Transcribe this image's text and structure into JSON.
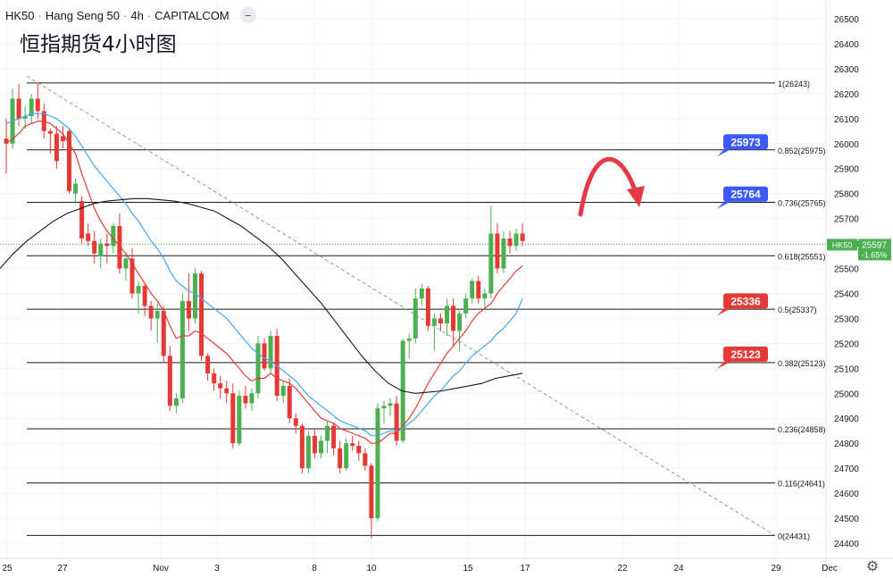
{
  "header": {
    "symbol": "HK50",
    "name": "Hang Seng 50",
    "interval": "4h",
    "source": "CAPITALCOM",
    "collapse_icon": "minus-icon"
  },
  "annotation_title": "恒指期货4小时图",
  "settings_icon": "gear-icon",
  "colors": {
    "up": "#4caf50",
    "down": "#e53935",
    "ema_fast": "#e53935",
    "ema_mid": "#42a5f5",
    "ema_slow": "#131722",
    "grid": "#f0f3fa",
    "fib": "#1a1a1a",
    "label_blue": "#3d5afe",
    "label_red": "#e53935",
    "arrow": "#e53945",
    "trend": "#9598a1"
  },
  "chart_data": {
    "type": "candlestick",
    "y_axis": {
      "min": 24380,
      "max": 26550,
      "ticks": [
        26500,
        26400,
        26300,
        26200,
        26100,
        26000,
        25900,
        25800,
        25700,
        25600,
        25500,
        25400,
        25300,
        25200,
        25100,
        25000,
        24900,
        24800,
        24700,
        24600,
        24500,
        24400
      ]
    },
    "x_axis": {
      "labels": [
        "25",
        "27",
        "Nov",
        "3",
        "8",
        "10",
        "15",
        "17",
        "22",
        "24",
        "29",
        "Dec"
      ]
    },
    "price_label": {
      "symbol": "HK50",
      "price": "25597",
      "change": "-1.65%"
    },
    "fib_levels": [
      {
        "label": "1(26243)",
        "price": 26243
      },
      {
        "label": "0.852(25975)",
        "price": 25975
      },
      {
        "label": "0.736(25765)",
        "price": 25765
      },
      {
        "label": "0.618(25551)",
        "price": 25551
      },
      {
        "label": "0.5(25337)",
        "price": 25337
      },
      {
        "label": "0.382(25123)",
        "price": 25123
      },
      {
        "label": "0.236(24858)",
        "price": 24858
      },
      {
        "label": "0.116(24641)",
        "price": 24641
      },
      {
        "label": "0(24431)",
        "price": 24431
      }
    ],
    "level_tags": [
      {
        "text": "25973",
        "price": 25973,
        "kind": "resistance"
      },
      {
        "text": "25764",
        "price": 25764,
        "kind": "resistance"
      },
      {
        "text": "25336",
        "price": 25336,
        "kind": "support"
      },
      {
        "text": "25123",
        "price": 25123,
        "kind": "support"
      }
    ],
    "candles": [
      [
        26020,
        26100,
        25880,
        26000
      ],
      [
        26000,
        26220,
        25980,
        26180
      ],
      [
        26180,
        26240,
        26070,
        26100
      ],
      [
        26100,
        26150,
        26060,
        26110
      ],
      [
        26110,
        26200,
        26080,
        26180
      ],
      [
        26180,
        26240,
        26100,
        26130
      ],
      [
        26130,
        26160,
        26020,
        26050
      ],
      [
        26050,
        26060,
        25960,
        26040
      ],
      [
        26040,
        26070,
        25900,
        25930
      ],
      [
        26030,
        26070,
        25980,
        26010
      ],
      [
        26050,
        26060,
        25800,
        25810
      ],
      [
        25800,
        25860,
        25760,
        25840
      ],
      [
        25770,
        25790,
        25600,
        25620
      ],
      [
        25640,
        25680,
        25590,
        25610
      ],
      [
        25610,
        25650,
        25520,
        25560
      ],
      [
        25550,
        25620,
        25500,
        25600
      ],
      [
        25600,
        25640,
        25520,
        25590
      ],
      [
        25590,
        25680,
        25560,
        25670
      ],
      [
        25670,
        25720,
        25480,
        25500
      ],
      [
        25500,
        25560,
        25450,
        25540
      ],
      [
        25540,
        25580,
        25380,
        25400
      ],
      [
        25400,
        25450,
        25320,
        25430
      ],
      [
        25430,
        25440,
        25310,
        25350
      ],
      [
        25350,
        25370,
        25250,
        25300
      ],
      [
        25300,
        25360,
        25200,
        25330
      ],
      [
        25330,
        25350,
        25120,
        25150
      ],
      [
        25150,
        25190,
        24930,
        24950
      ],
      [
        24950,
        25000,
        24920,
        24980
      ],
      [
        24980,
        25400,
        24960,
        25370
      ],
      [
        25370,
        25480,
        25250,
        25300
      ],
      [
        25300,
        25500,
        25280,
        25480
      ],
      [
        25480,
        25490,
        25130,
        25150
      ],
      [
        25150,
        25160,
        25050,
        25080
      ],
      [
        25080,
        25100,
        25010,
        25040
      ],
      [
        25040,
        25070,
        24980,
        25020
      ],
      [
        25020,
        25050,
        24960,
        25000
      ],
      [
        25000,
        25040,
        24780,
        24800
      ],
      [
        24800,
        25010,
        24790,
        24990
      ],
      [
        24990,
        25030,
        24940,
        24960
      ],
      [
        24960,
        25020,
        24930,
        25000
      ],
      [
        25000,
        25230,
        24980,
        25200
      ],
      [
        25200,
        25220,
        25090,
        25100
      ],
      [
        25100,
        25250,
        25080,
        25230
      ],
      [
        25230,
        25260,
        24970,
        24990
      ],
      [
        24990,
        25050,
        24960,
        25030
      ],
      [
        25030,
        25060,
        24880,
        24900
      ],
      [
        24900,
        24920,
        24840,
        24870
      ],
      [
        24870,
        24880,
        24680,
        24700
      ],
      [
        24700,
        24850,
        24680,
        24830
      ],
      [
        24830,
        24860,
        24740,
        24760
      ],
      [
        24760,
        24830,
        24740,
        24810
      ],
      [
        24810,
        24890,
        24760,
        24870
      ],
      [
        24870,
        24880,
        24750,
        24780
      ],
      [
        24780,
        24810,
        24680,
        24700
      ],
      [
        24700,
        24820,
        24690,
        24800
      ],
      [
        24800,
        24830,
        24770,
        24790
      ],
      [
        24790,
        24810,
        24730,
        24760
      ],
      [
        24760,
        24780,
        24690,
        24710
      ],
      [
        24710,
        24720,
        24420,
        24500
      ],
      [
        24500,
        24960,
        24490,
        24940
      ],
      [
        24940,
        24970,
        24880,
        24950
      ],
      [
        24950,
        24980,
        24910,
        24960
      ],
      [
        24960,
        24990,
        24790,
        24810
      ],
      [
        24810,
        25220,
        24800,
        25210
      ],
      [
        25210,
        25240,
        25140,
        25220
      ],
      [
        25220,
        25420,
        25200,
        25380
      ],
      [
        25380,
        25440,
        25350,
        25420
      ],
      [
        25420,
        25430,
        25250,
        25270
      ],
      [
        25270,
        25320,
        25170,
        25300
      ],
      [
        25300,
        25320,
        25250,
        25280
      ],
      [
        25280,
        25380,
        25230,
        25350
      ],
      [
        25350,
        25380,
        25190,
        25250
      ],
      [
        25250,
        25330,
        25170,
        25320
      ],
      [
        25320,
        25400,
        25300,
        25380
      ],
      [
        25380,
        25460,
        25360,
        25450
      ],
      [
        25450,
        25470,
        25360,
        25380
      ],
      [
        25380,
        25420,
        25340,
        25400
      ],
      [
        25400,
        25750,
        25380,
        25640
      ],
      [
        25640,
        25680,
        25480,
        25500
      ],
      [
        25500,
        25650,
        25480,
        25620
      ],
      [
        25620,
        25650,
        25560,
        25590
      ],
      [
        25590,
        25660,
        25570,
        25640
      ],
      [
        25640,
        25680,
        25590,
        25610
      ]
    ],
    "ema_fast": [
      26000,
      26020,
      26040,
      26070,
      26080,
      26090,
      26090,
      26080,
      26060,
      26040,
      26000,
      25960,
      25880,
      25810,
      25740,
      25690,
      25650,
      25620,
      25590,
      25560,
      25520,
      25480,
      25440,
      25400,
      25370,
      25330,
      25270,
      25220,
      25230,
      25230,
      25250,
      25240,
      25220,
      25200,
      25180,
      25160,
      25130,
      25100,
      25070,
      25050,
      25060,
      25060,
      25080,
      25060,
      25050,
      25040,
      25020,
      24990,
      24960,
      24930,
      24900,
      24890,
      24880,
      24860,
      24850,
      24840,
      24830,
      24820,
      24800,
      24800,
      24820,
      24840,
      24840,
      24870,
      24900,
      24940,
      24990,
      25040,
      25080,
      25120,
      25160,
      25190,
      25220,
      25250,
      25290,
      25320,
      25340,
      25360,
      25400,
      25430,
      25460,
      25490,
      25510
    ],
    "ema_mid": [
      26080,
      26090,
      26100,
      26110,
      26120,
      26120,
      26120,
      26110,
      26100,
      26080,
      26060,
      26030,
      25990,
      25950,
      25910,
      25880,
      25850,
      25820,
      25790,
      25760,
      25720,
      25690,
      25650,
      25610,
      25580,
      25540,
      25490,
      25450,
      25430,
      25410,
      25400,
      25380,
      25360,
      25340,
      25320,
      25300,
      25270,
      25240,
      25210,
      25180,
      25160,
      25140,
      25130,
      25110,
      25090,
      25070,
      25050,
      25020,
      24990,
      24970,
      24950,
      24930,
      24910,
      24890,
      24880,
      24870,
      24860,
      24850,
      24830,
      24830,
      24840,
      24850,
      24850,
      24860,
      24880,
      24900,
      24930,
      24960,
      24990,
      25010,
      25040,
      25070,
      25090,
      25120,
      25150,
      25170,
      25190,
      25210,
      25240,
      25260,
      25290,
      25320,
      25380
    ],
    "ema_slow": [
      25500,
      25560,
      25610,
      25650,
      25690,
      25720,
      25740,
      25760,
      25770,
      25775,
      25780,
      25780,
      25775,
      25770,
      25760,
      25745,
      25730,
      25700,
      25670,
      25630,
      25590,
      25540,
      25480,
      25420,
      25360,
      25290,
      25220,
      25150,
      25090,
      25040,
      25010,
      25000,
      25005,
      25010,
      25020,
      25030,
      25040,
      25060,
      25070,
      25080
    ]
  }
}
